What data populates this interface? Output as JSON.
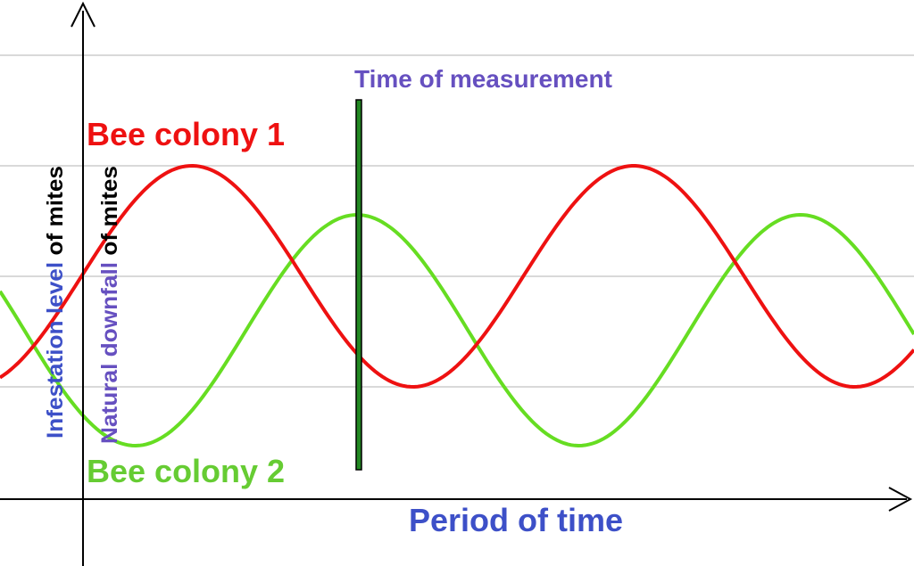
{
  "title": "Time of measurement",
  "series_labels": [
    "Bee colony 1",
    "Bee colony 2"
  ],
  "x_axis_label": "Period of time",
  "y_axis_labels": [
    {
      "highlight": "Infestation level",
      "rest": "of mites"
    },
    {
      "highlight": "Natural downfall",
      "rest": "of mites"
    }
  ]
}
